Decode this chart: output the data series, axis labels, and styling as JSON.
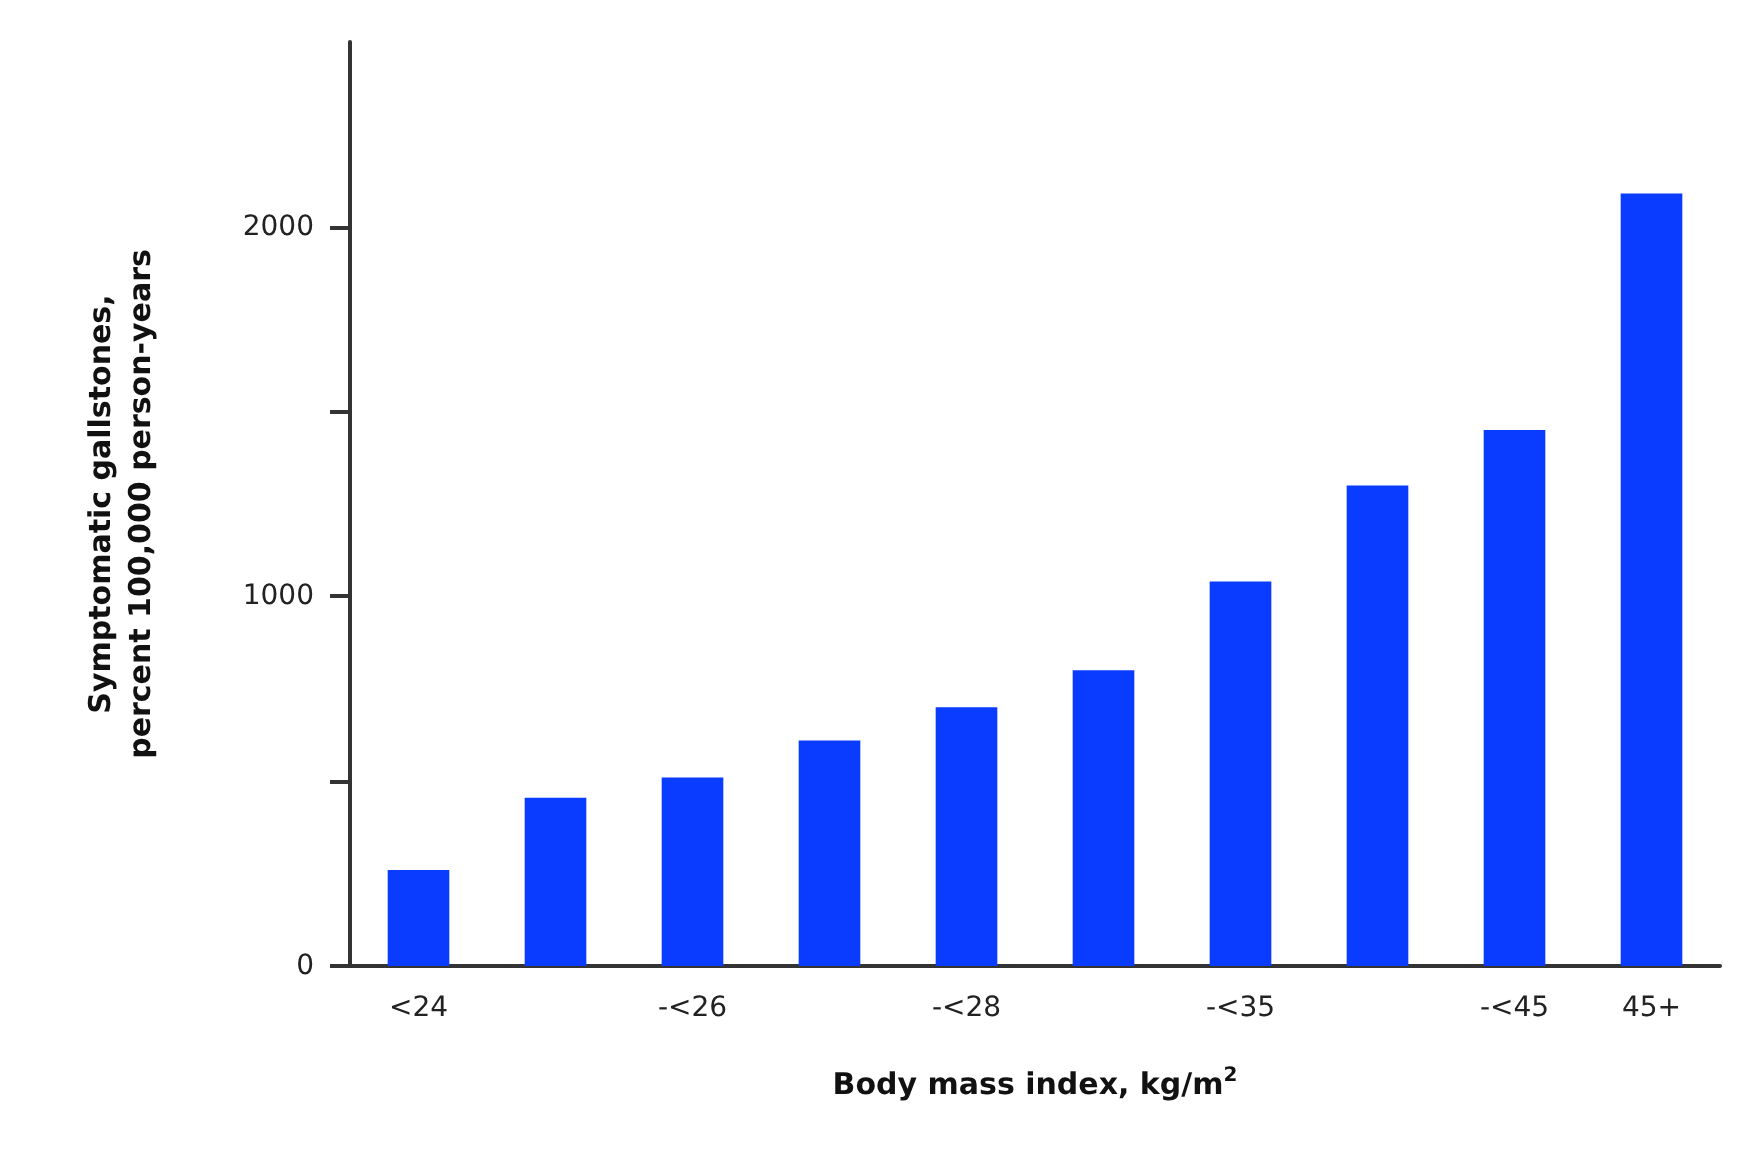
{
  "chart_data": {
    "type": "bar",
    "xlabel": "Body mass index, kg/m$^{2}$",
    "ylabel": "Symptomatic gallstones,\npercent 100,000 person-years",
    "categories": [
      "<24",
      null,
      "-<26",
      null,
      "-<28",
      null,
      "-<35",
      null,
      "-<45",
      "45+"
    ],
    "values": [
      260,
      455,
      510,
      610,
      700,
      800,
      1040,
      1300,
      1450,
      2090
    ],
    "color": "#0a3cff",
    "ylim": [
      0,
      2500
    ],
    "yticks": [
      0,
      {
        "value": 500,
        "label": null
      },
      1000,
      {
        "value": 1500,
        "label": null
      },
      2000
    ],
    "grid": false
  }
}
